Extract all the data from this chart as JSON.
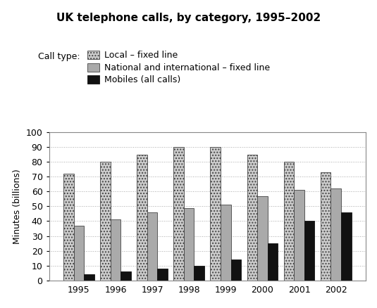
{
  "title": "UK telephone calls, by category, 1995–2002",
  "ylabel": "Minutes (billions)",
  "years": [
    1995,
    1996,
    1997,
    1998,
    1999,
    2000,
    2001,
    2002
  ],
  "local_fixed": [
    72,
    80,
    85,
    90,
    90,
    85,
    80,
    73
  ],
  "national_fixed": [
    37,
    41,
    46,
    49,
    51,
    57,
    61,
    62
  ],
  "mobiles": [
    4,
    6,
    8,
    10,
    14,
    25,
    40,
    46
  ],
  "color_national": "#aaaaaa",
  "color_mobiles": "#111111",
  "legend_label_local": "Local – fixed line",
  "legend_label_national": "National and international – fixed line",
  "legend_label_mobiles": "Mobiles (all calls)",
  "legend_prefix": "Call type:",
  "ylim": [
    0,
    100
  ],
  "yticks": [
    0,
    10,
    20,
    30,
    40,
    50,
    60,
    70,
    80,
    90,
    100
  ],
  "bar_width": 0.28,
  "background_color": "#ffffff"
}
